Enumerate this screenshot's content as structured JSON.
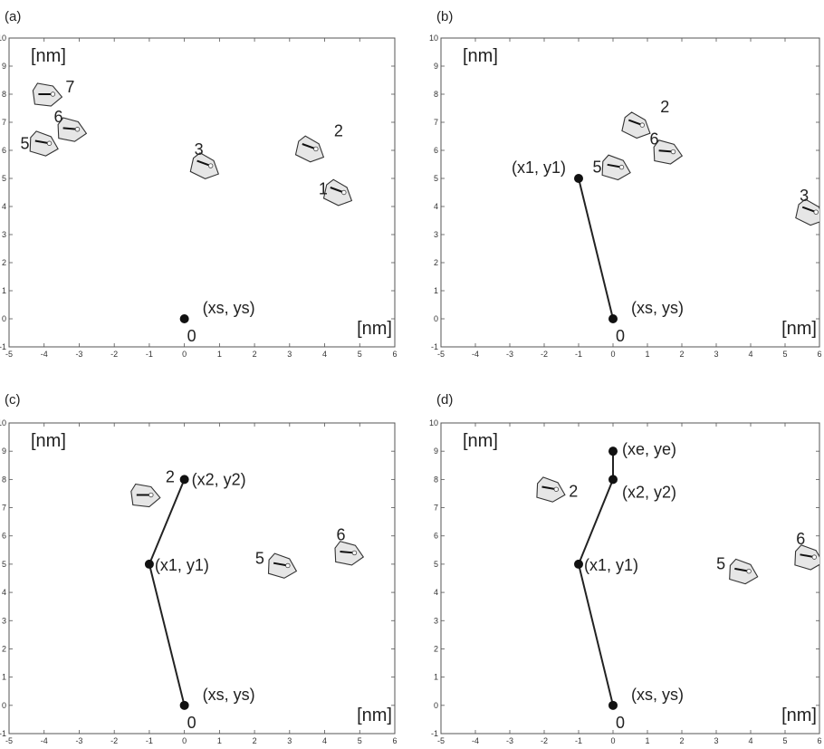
{
  "chart_data": [
    {
      "panel": "(a)",
      "type": "scatter",
      "xlim": [
        -5,
        6
      ],
      "ylim": [
        -1,
        10
      ],
      "xticks": [
        -5,
        -4,
        -3,
        -2,
        -1,
        0,
        1,
        2,
        3,
        4,
        5,
        6
      ],
      "yticks": [
        -1,
        0,
        1,
        2,
        3,
        4,
        5,
        6,
        7,
        8,
        9,
        10
      ],
      "x_unit": "[nm]",
      "y_unit": "[nm]",
      "nodes": [
        {
          "label": "0",
          "x": 0,
          "y": 0
        }
      ],
      "node_annotations": [
        {
          "text": "(xs, ys)",
          "x": 0,
          "y": 0
        }
      ],
      "path": [],
      "objects": [
        {
          "label": "1",
          "x": 4.55,
          "y": 4.5,
          "angle": -20
        },
        {
          "label": "2",
          "x": 3.75,
          "y": 6.05,
          "angle": -20
        },
        {
          "label": "3",
          "x": 0.75,
          "y": 5.45,
          "angle": -20
        },
        {
          "label": "5",
          "x": -3.85,
          "y": 6.25,
          "angle": -10
        },
        {
          "label": "6",
          "x": -3.05,
          "y": 6.75,
          "angle": -5
        },
        {
          "label": "7",
          "x": -3.75,
          "y": 8.0,
          "angle": 0
        }
      ]
    },
    {
      "panel": "(b)",
      "type": "scatter",
      "xlim": [
        -5,
        6
      ],
      "ylim": [
        -1,
        10
      ],
      "xticks": [
        -5,
        -4,
        -3,
        -2,
        -1,
        0,
        1,
        2,
        3,
        4,
        5,
        6
      ],
      "yticks": [
        -1,
        0,
        1,
        2,
        3,
        4,
        5,
        6,
        7,
        8,
        9,
        10
      ],
      "x_unit": "[nm]",
      "y_unit": "[nm]",
      "nodes": [
        {
          "label": "0",
          "x": 0,
          "y": 0
        },
        {
          "label": "",
          "x": -1,
          "y": 5
        }
      ],
      "node_annotations": [
        {
          "text": "(xs, ys)",
          "x": 0,
          "y": 0
        },
        {
          "text": "(x1, y1)",
          "x": -1,
          "y": 5
        }
      ],
      "path": [
        [
          0,
          0
        ],
        [
          -1,
          5
        ]
      ],
      "objects": [
        {
          "label": "2",
          "x": 0.85,
          "y": 6.9,
          "angle": -20
        },
        {
          "label": "5",
          "x": 0.25,
          "y": 5.4,
          "angle": -10
        },
        {
          "label": "6",
          "x": 1.75,
          "y": 5.95,
          "angle": -5
        },
        {
          "label": "3",
          "x": 5.9,
          "y": 3.8,
          "angle": -20
        }
      ]
    },
    {
      "panel": "(c)",
      "type": "scatter",
      "xlim": [
        -5,
        6
      ],
      "ylim": [
        -1,
        10
      ],
      "xticks": [
        -5,
        -4,
        -3,
        -2,
        -1,
        0,
        1,
        2,
        3,
        4,
        5,
        6
      ],
      "yticks": [
        -1,
        0,
        1,
        2,
        3,
        4,
        5,
        6,
        7,
        8,
        9,
        10
      ],
      "x_unit": "[nm]",
      "y_unit": "[nm]",
      "nodes": [
        {
          "label": "0",
          "x": 0,
          "y": 0
        },
        {
          "label": "",
          "x": -1,
          "y": 5
        },
        {
          "label": "",
          "x": 0,
          "y": 8
        }
      ],
      "node_annotations": [
        {
          "text": "(xs, ys)",
          "x": 0,
          "y": 0
        },
        {
          "text": "(x1, y1)",
          "x": -1,
          "y": 5
        },
        {
          "text": "(x2, y2)",
          "x": 0,
          "y": 8
        }
      ],
      "path": [
        [
          0,
          0
        ],
        [
          -1,
          5
        ],
        [
          0,
          8
        ]
      ],
      "objects": [
        {
          "label": "2",
          "x": -0.95,
          "y": 7.45,
          "angle": 0
        },
        {
          "label": "5",
          "x": 2.95,
          "y": 4.95,
          "angle": -10
        },
        {
          "label": "6",
          "x": 4.85,
          "y": 5.4,
          "angle": -5
        }
      ]
    },
    {
      "panel": "(d)",
      "type": "scatter",
      "xlim": [
        -5,
        6
      ],
      "ylim": [
        -1,
        10
      ],
      "xticks": [
        -5,
        -4,
        -3,
        -2,
        -1,
        0,
        1,
        2,
        3,
        4,
        5,
        6
      ],
      "yticks": [
        -1,
        0,
        1,
        2,
        3,
        4,
        5,
        6,
        7,
        8,
        9,
        10
      ],
      "x_unit": "[nm]",
      "y_unit": "[nm]",
      "nodes": [
        {
          "label": "0",
          "x": 0,
          "y": 0
        },
        {
          "label": "",
          "x": -1,
          "y": 5
        },
        {
          "label": "",
          "x": 0,
          "y": 8
        },
        {
          "label": "",
          "x": 0,
          "y": 9
        }
      ],
      "node_annotations": [
        {
          "text": "(xs, ys)",
          "x": 0,
          "y": 0
        },
        {
          "text": "(x1, y1)",
          "x": -1,
          "y": 5
        },
        {
          "text": "(x2, y2)",
          "x": 0,
          "y": 8
        },
        {
          "text": "(xe, ye)",
          "x": 0,
          "y": 9
        }
      ],
      "path": [
        [
          0,
          0
        ],
        [
          -1,
          5
        ],
        [
          0,
          8
        ],
        [
          0,
          9
        ]
      ],
      "objects": [
        {
          "label": "2",
          "x": -1.65,
          "y": 7.65,
          "angle": -10
        },
        {
          "label": "5",
          "x": 3.95,
          "y": 4.75,
          "angle": -10
        },
        {
          "label": "6",
          "x": 5.85,
          "y": 5.25,
          "angle": -10
        }
      ]
    }
  ]
}
